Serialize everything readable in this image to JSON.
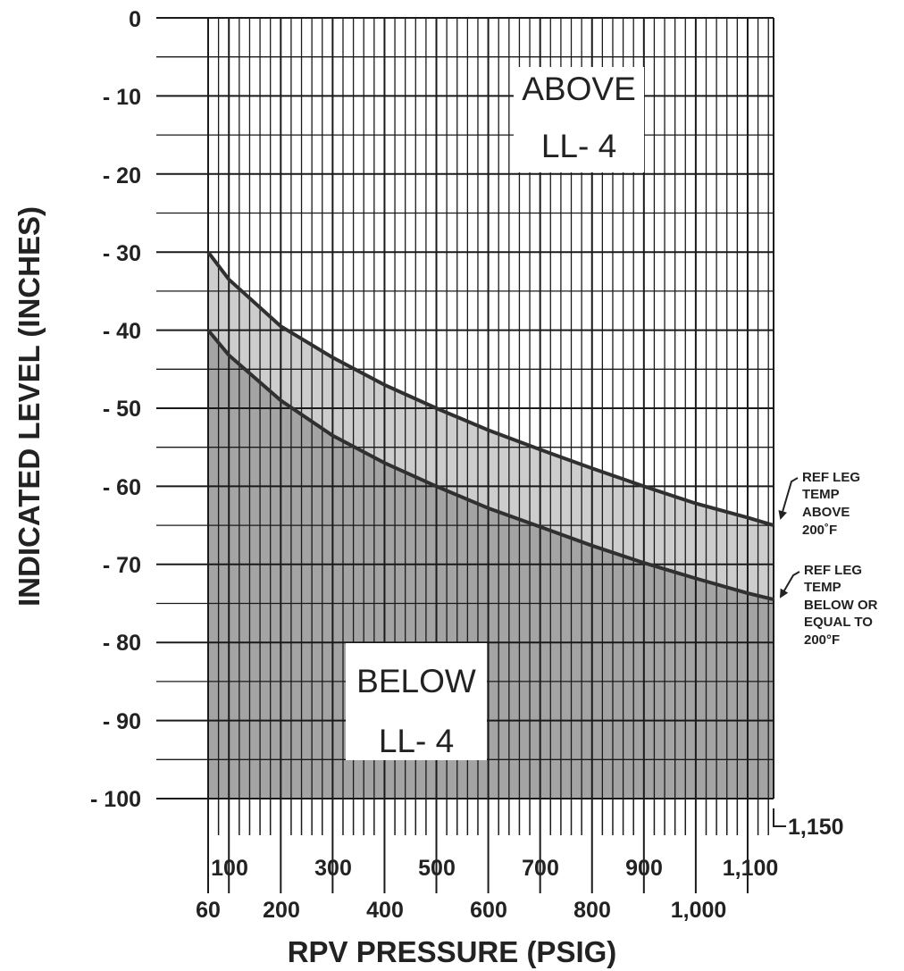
{
  "colors": {
    "line": "#303030",
    "fill_below_curve": "#a4a4a4",
    "fill_between_curves": "#cdcdcd",
    "grid": "#1a1a1a",
    "label_box": "#ffffff"
  },
  "chart_data": {
    "type": "area",
    "xlabel": "RPV PRESSURE (PSIG)",
    "ylabel": "INDICATED LEVEL (INCHES)",
    "xlim": [
      60,
      1150
    ],
    "ylim": [
      -100,
      0
    ],
    "y_ticks": [
      "0",
      "- 10",
      "- 20",
      "- 30",
      "- 40",
      "- 50",
      "- 60",
      "- 70",
      "- 80",
      "- 90",
      "- 100"
    ],
    "y_tick_values": [
      0,
      -10,
      -20,
      -30,
      -40,
      -50,
      -60,
      -70,
      -80,
      -90,
      -100
    ],
    "x_ticks_upper": [
      "100",
      "300",
      "500",
      "700",
      "900",
      "1,100"
    ],
    "x_ticks_upper_values": [
      100,
      300,
      500,
      700,
      900,
      1100
    ],
    "x_ticks_lower": [
      "60",
      "200",
      "400",
      "600",
      "800",
      "1,000"
    ],
    "x_ticks_lower_values": [
      60,
      200,
      400,
      600,
      800,
      1000
    ],
    "x_end_label": "1,150",
    "x_end_value": 1150,
    "grid": true,
    "series": [
      {
        "name": "REF LEG TEMP ABOVE 200°F",
        "x": [
          60,
          100,
          200,
          300,
          400,
          500,
          600,
          700,
          800,
          900,
          1000,
          1100,
          1150
        ],
        "y": [
          -30,
          -33.5,
          -39.5,
          -43.5,
          -47,
          -50,
          -52.8,
          -55.3,
          -57.7,
          -60,
          -62.2,
          -64,
          -65
        ]
      },
      {
        "name": "REF LEG TEMP BELOW OR EQUAL TO 200°F",
        "x": [
          60,
          100,
          200,
          300,
          400,
          500,
          600,
          700,
          800,
          900,
          1000,
          1100,
          1150
        ],
        "y": [
          -40,
          -43.2,
          -49,
          -53.5,
          -57,
          -60,
          -62.8,
          -65.2,
          -67.6,
          -69.8,
          -71.8,
          -73.7,
          -74.5
        ]
      }
    ],
    "annotations": {
      "above_region": [
        "ABOVE",
        "LL- 4"
      ],
      "below_region": [
        "BELOW",
        "LL- 4"
      ],
      "upper_curve_note": [
        "REF LEG",
        "TEMP",
        "ABOVE",
        "200˚F"
      ],
      "lower_curve_note": [
        "REF LEG",
        "TEMP",
        "BELOW OR",
        "EQUAL TO",
        "200°F"
      ]
    }
  }
}
